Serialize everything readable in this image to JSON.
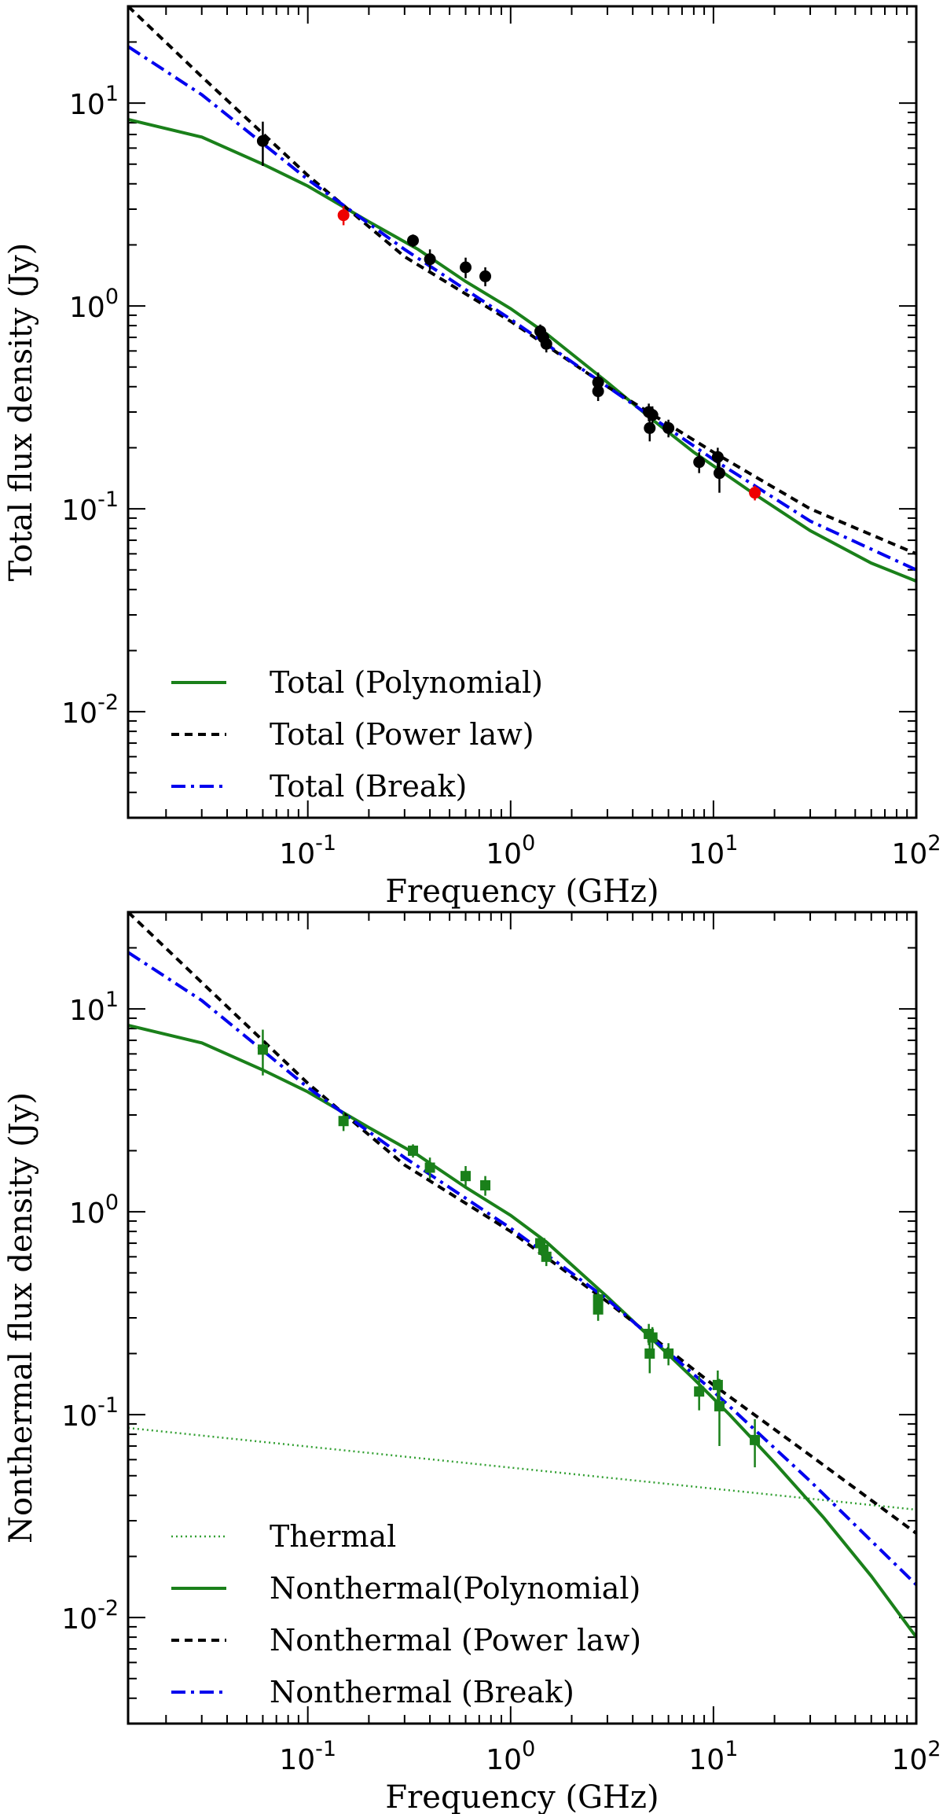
{
  "chart_data": [
    {
      "type": "line",
      "id": "total",
      "xlabel": "Frequency (GHz)",
      "ylabel": "Total flux density (Jy)",
      "xscale": "log",
      "yscale": "log",
      "xlim": [
        0.013,
        100
      ],
      "ylim": [
        0.003,
        30
      ],
      "xtick_labels": [
        {
          "value": 0.1,
          "base": "10",
          "exp": "-1"
        },
        {
          "value": 1,
          "base": "10",
          "exp": "0"
        },
        {
          "value": 10,
          "base": "10",
          "exp": "1"
        },
        {
          "value": 100,
          "base": "10",
          "exp": "2"
        }
      ],
      "ytick_labels": [
        {
          "value": 0.01,
          "base": "10",
          "exp": "-2"
        },
        {
          "value": 0.1,
          "base": "10",
          "exp": "-1"
        },
        {
          "value": 1,
          "base": "10",
          "exp": "0"
        },
        {
          "value": 10,
          "base": "10",
          "exp": "1"
        }
      ],
      "legend_position": "lower-left",
      "series": [
        {
          "name": "Total (Polynomial)",
          "style": "solid",
          "color": "#1a801a",
          "x": [
            0.013,
            0.03,
            0.06,
            0.1,
            0.2,
            0.35,
            0.6,
            1,
            1.5,
            3,
            5,
            8,
            15,
            30,
            60,
            100
          ],
          "y": [
            8.3,
            6.8,
            5.0,
            3.9,
            2.6,
            1.9,
            1.32,
            0.97,
            0.73,
            0.42,
            0.275,
            0.19,
            0.123,
            0.078,
            0.054,
            0.044
          ]
        },
        {
          "name": "Total (Power law)",
          "style": "dashed",
          "color": "#000000",
          "x": [
            0.013,
            0.03,
            0.1,
            0.3,
            1,
            3,
            10,
            30,
            100
          ],
          "y": [
            30,
            13.5,
            4.4,
            1.75,
            0.84,
            0.4,
            0.19,
            0.1,
            0.06
          ]
        },
        {
          "name": "Total (Break)",
          "style": "dashdot",
          "color": "#0000ee",
          "x": [
            0.013,
            0.03,
            0.1,
            0.3,
            1,
            3,
            10,
            30,
            100
          ],
          "y": [
            19,
            11,
            4.2,
            1.9,
            0.86,
            0.4,
            0.175,
            0.087,
            0.05
          ]
        }
      ],
      "points": [
        {
          "color": "#000000",
          "marker": "circle",
          "x": [
            0.06,
            0.33,
            0.4,
            0.6,
            0.75,
            1.4,
            1.45,
            1.5,
            2.7,
            2.7,
            4.8,
            4.85,
            5.0,
            6.0,
            8.5,
            10.5,
            10.7
          ],
          "y": [
            6.5,
            2.1,
            1.7,
            1.55,
            1.4,
            0.75,
            0.7,
            0.65,
            0.42,
            0.38,
            0.3,
            0.25,
            0.29,
            0.25,
            0.17,
            0.18,
            0.15
          ],
          "err": [
            1.6,
            0.15,
            0.2,
            0.18,
            0.15,
            0.06,
            0.06,
            0.06,
            0.05,
            0.04,
            0.03,
            0.035,
            0.03,
            0.025,
            0.02,
            0.02,
            0.03
          ]
        },
        {
          "color": "#ee0000",
          "marker": "circle",
          "x": [
            0.15,
            16
          ],
          "y": [
            2.8,
            0.12
          ],
          "err": [
            0.3,
            0.01
          ]
        }
      ]
    },
    {
      "type": "line",
      "id": "nonthermal",
      "xlabel": "Frequency (GHz)",
      "ylabel": "Nonthermal flux density (Jy)",
      "xscale": "log",
      "yscale": "log",
      "xlim": [
        0.013,
        100
      ],
      "ylim": [
        0.003,
        30
      ],
      "xtick_labels": [
        {
          "value": 0.1,
          "base": "10",
          "exp": "-1"
        },
        {
          "value": 1,
          "base": "10",
          "exp": "0"
        },
        {
          "value": 10,
          "base": "10",
          "exp": "1"
        },
        {
          "value": 100,
          "base": "10",
          "exp": "2"
        }
      ],
      "ytick_labels": [
        {
          "value": 0.01,
          "base": "10",
          "exp": "-2"
        },
        {
          "value": 0.1,
          "base": "10",
          "exp": "-1"
        },
        {
          "value": 1,
          "base": "10",
          "exp": "0"
        },
        {
          "value": 10,
          "base": "10",
          "exp": "1"
        }
      ],
      "legend_position": "lower-left",
      "series": [
        {
          "name": "Thermal",
          "style": "dotted",
          "color": "#33a033",
          "x": [
            0.013,
            100
          ],
          "y": [
            0.086,
            0.034
          ]
        },
        {
          "name": "Nonthermal(Polynomial)",
          "style": "solid",
          "color": "#1a801a",
          "x": [
            0.013,
            0.03,
            0.06,
            0.1,
            0.2,
            0.35,
            0.6,
            1,
            1.5,
            3,
            5,
            8,
            12,
            20,
            35,
            60,
            100
          ],
          "y": [
            8.3,
            6.8,
            5.0,
            3.9,
            2.6,
            1.9,
            1.32,
            0.96,
            0.71,
            0.38,
            0.235,
            0.15,
            0.1,
            0.058,
            0.031,
            0.016,
            0.008
          ]
        },
        {
          "name": "Nonthermal (Power law)",
          "style": "dashed",
          "color": "#000000",
          "x": [
            0.013,
            0.03,
            0.1,
            0.3,
            1,
            3,
            10,
            30,
            100
          ],
          "y": [
            30,
            13.5,
            4.3,
            1.7,
            0.8,
            0.36,
            0.14,
            0.063,
            0.026
          ]
        },
        {
          "name": "Nonthermal (Break)",
          "style": "dashdot",
          "color": "#0000ee",
          "x": [
            0.013,
            0.03,
            0.1,
            0.3,
            1,
            3,
            10,
            30,
            100
          ],
          "y": [
            19,
            11,
            4.1,
            1.85,
            0.83,
            0.37,
            0.13,
            0.047,
            0.0145
          ]
        }
      ],
      "points": [
        {
          "color": "#1a801a",
          "marker": "square",
          "x": [
            0.06,
            0.15,
            0.33,
            0.4,
            0.6,
            0.75,
            1.4,
            1.45,
            1.5,
            2.7,
            2.7,
            4.8,
            4.85,
            5.0,
            6.0,
            8.5,
            10.5,
            10.7,
            16
          ],
          "y": [
            6.3,
            2.8,
            2.0,
            1.65,
            1.5,
            1.35,
            0.7,
            0.65,
            0.6,
            0.37,
            0.33,
            0.25,
            0.2,
            0.24,
            0.2,
            0.13,
            0.14,
            0.11,
            0.075
          ],
          "err": [
            1.6,
            0.3,
            0.15,
            0.2,
            0.18,
            0.15,
            0.06,
            0.06,
            0.06,
            0.05,
            0.04,
            0.03,
            0.04,
            0.03,
            0.025,
            0.025,
            0.025,
            0.04,
            0.02
          ]
        }
      ]
    }
  ]
}
